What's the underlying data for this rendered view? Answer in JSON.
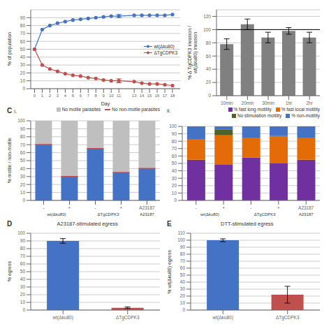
{
  "chart_data": [
    {
      "type": "line",
      "xlabel": "Day",
      "ylabel": "% of population",
      "x": [
        0,
        1,
        2,
        3,
        4,
        5,
        6,
        7,
        8,
        9,
        10,
        11,
        13,
        14,
        15,
        16,
        17,
        18
      ],
      "series": [
        {
          "name": "wt(Δku80)",
          "color": "#4472C4",
          "marker": "circle",
          "values": [
            50,
            75,
            80,
            83,
            85,
            87,
            88,
            89,
            90,
            91,
            92,
            92,
            93,
            93,
            93,
            93,
            93,
            94
          ],
          "errors": [
            null,
            null,
            null,
            null,
            null,
            null,
            null,
            null,
            null,
            null,
            null,
            2,
            null,
            null,
            null,
            null,
            null,
            null
          ]
        },
        {
          "name": "ΔTgCDPK3",
          "color": "#C0504D",
          "marker": "circle",
          "values": [
            50,
            30,
            25,
            22,
            19,
            17,
            16,
            14,
            13,
            11,
            10,
            10,
            9,
            7,
            6,
            6,
            5,
            4
          ],
          "errors": [
            null,
            null,
            null,
            null,
            null,
            null,
            null,
            null,
            null,
            null,
            null,
            2.5,
            null,
            null,
            null,
            null,
            null,
            null
          ]
        }
      ],
      "xlim": [
        -0.5,
        19
      ],
      "xticks": [
        0,
        1,
        2,
        3,
        4,
        5,
        6,
        7,
        8,
        9,
        10,
        11,
        13,
        14,
        15,
        16,
        17,
        18
      ],
      "ylim": [
        0,
        100
      ],
      "yticks": [
        0,
        10,
        20,
        30,
        40,
        50,
        60,
        70,
        80,
        90
      ],
      "grid": true,
      "legend": "center right"
    },
    {
      "type": "bar",
      "ylabel": "% Δ TgCDPK3 invasion /\nwt(Δku80) invasion",
      "categories": [
        "10min",
        "20min",
        "30min",
        "1hr",
        "2hr"
      ],
      "values": [
        78,
        108,
        88,
        98,
        88
      ],
      "errors": [
        8,
        8,
        8,
        5,
        8
      ],
      "color": "#808080",
      "reference_line": 100,
      "ylim": [
        0,
        130
      ],
      "yticks": [
        0,
        20,
        40,
        60,
        80,
        100,
        120
      ],
      "grid": true
    },
    {
      "type": "bar",
      "stacked": true,
      "ylabel": "% motile / non-motile",
      "annotations": [
        "C",
        "i."
      ],
      "categories": [
        "-",
        "+",
        "-",
        "+",
        "A23187"
      ],
      "group_labels": [
        "wt(Δku80)",
        "ΔTgCDPK3",
        "A23187"
      ],
      "series": [
        {
          "color": "#4472C4",
          "values": [
            70,
            30,
            65,
            35,
            40
          ]
        },
        {
          "name": "No motile parasites",
          "color": "#BFBFBF",
          "values": [
            30,
            70,
            35,
            65,
            60
          ]
        },
        {
          "name": "No non-motile parasites",
          "type": "line",
          "line_style": "none",
          "marker": "hline",
          "color": "#C0504D",
          "values": [
            70,
            30,
            65,
            35,
            40
          ]
        }
      ],
      "ylim": [
        0,
        100
      ],
      "yticks": [
        0,
        10,
        20,
        30,
        40,
        50,
        60,
        70,
        80,
        90,
        100
      ],
      "grid": true,
      "legend": "upper right"
    },
    {
      "type": "bar",
      "stacked": true,
      "annotations": [
        "ii."
      ],
      "categories": [
        "-",
        "+",
        "-",
        "+",
        "A23187"
      ],
      "group_labels": [
        "wt(Δku80)",
        "ΔTgCDPK3",
        "A23187"
      ],
      "series": [
        {
          "name": "% fast long motility",
          "color": "#7030A0",
          "values": [
            55,
            48,
            58,
            50,
            55
          ]
        },
        {
          "name": "% fast local motility",
          "color": "#E36C09",
          "values": [
            28,
            40,
            27,
            37,
            30
          ]
        },
        {
          "name": "No stimulation motility",
          "color": "#4F6228",
          "values": [
            0,
            8,
            0,
            0,
            0
          ]
        },
        {
          "name": "% non-motility",
          "color": "#4472C4",
          "values": [
            17,
            4,
            15,
            13,
            15
          ]
        }
      ],
      "ylim": [
        0,
        100
      ],
      "yticks": [
        0,
        10,
        20,
        30,
        40,
        50,
        60,
        70,
        80,
        90,
        100
      ],
      "grid": true,
      "legend": "upper right"
    },
    {
      "type": "bar",
      "title": "A23187-stimulated egress",
      "ylabel": "% egress",
      "annotations": [
        "D"
      ],
      "categories": [
        "wt(Δku80)",
        "ΔTgCDPK3"
      ],
      "values": [
        90,
        3
      ],
      "errors": [
        3,
        1
      ],
      "colors": [
        "#4472C4",
        "#C0504D"
      ],
      "ylim": [
        0,
        100
      ],
      "yticks": [
        0,
        10,
        20,
        30,
        40,
        50,
        60,
        70,
        80,
        90,
        100
      ],
      "grid": true
    },
    {
      "type": "bar",
      "title": "DTT-stimulated egress",
      "ylabel": "% wt(Δku80) egress",
      "annotations": [
        "E"
      ],
      "categories": [
        "wt(Δku80)",
        "ΔTgCDPK3"
      ],
      "values": [
        100,
        22
      ],
      "errors": [
        2,
        12
      ],
      "colors": [
        "#4472C4",
        "#C0504D"
      ],
      "ylim": [
        0,
        110
      ],
      "yticks": [
        0,
        10,
        20,
        30,
        40,
        50,
        60,
        70,
        80,
        90,
        100,
        110
      ],
      "grid": true
    }
  ]
}
